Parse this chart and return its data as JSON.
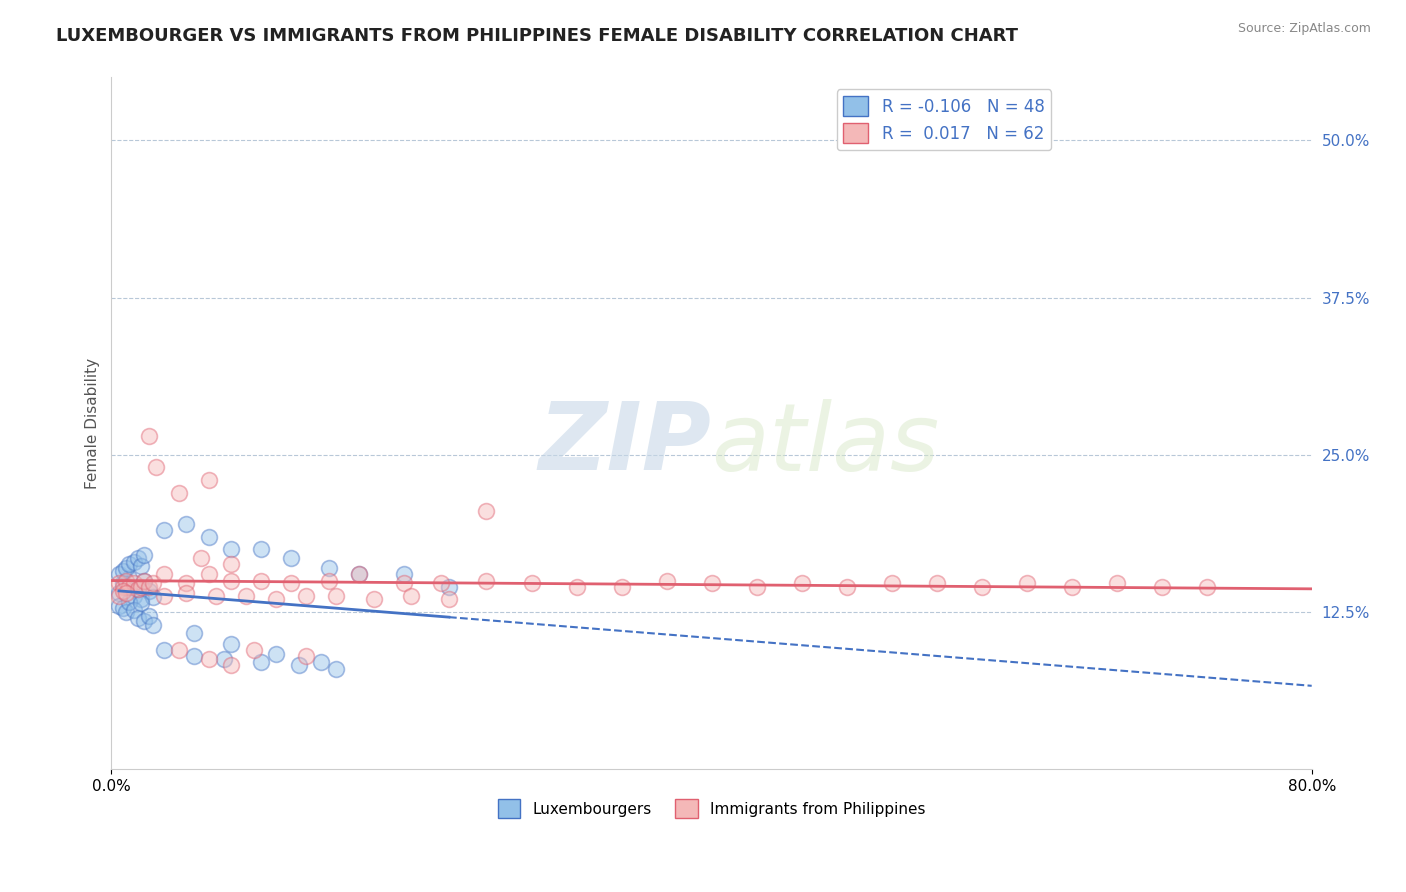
{
  "title": "LUXEMBOURGER VS IMMIGRANTS FROM PHILIPPINES FEMALE DISABILITY CORRELATION CHART",
  "source": "Source: ZipAtlas.com",
  "ylabel": "Female Disability",
  "xlim": [
    0.0,
    0.8
  ],
  "ylim": [
    0.0,
    0.55
  ],
  "yticks": [
    0.125,
    0.25,
    0.375,
    0.5
  ],
  "ytick_labels": [
    "12.5%",
    "25.0%",
    "37.5%",
    "50.0%"
  ],
  "xticks": [
    0.0,
    0.8
  ],
  "xtick_labels": [
    "0.0%",
    "80.0%"
  ],
  "legend_R1": "-0.106",
  "legend_N1": "48",
  "legend_R2": "0.017",
  "legend_N2": "62",
  "color_lux": "#92c0e8",
  "color_phi": "#f4b8b8",
  "line_color_lux": "#4472c4",
  "line_color_phi": "#e06070",
  "lux_x": [
    0.005,
    0.008,
    0.01,
    0.012,
    0.015,
    0.018,
    0.02,
    0.022,
    0.025,
    0.028,
    0.005,
    0.008,
    0.01,
    0.012,
    0.015,
    0.018,
    0.02,
    0.022,
    0.025,
    0.028,
    0.005,
    0.008,
    0.01,
    0.012,
    0.015,
    0.018,
    0.02,
    0.022,
    0.035,
    0.05,
    0.065,
    0.08,
    0.1,
    0.12,
    0.145,
    0.165,
    0.195,
    0.225,
    0.035,
    0.055,
    0.075,
    0.1,
    0.125,
    0.15,
    0.055,
    0.08,
    0.11,
    0.14
  ],
  "lux_y": [
    0.14,
    0.148,
    0.145,
    0.152,
    0.138,
    0.143,
    0.135,
    0.15,
    0.142,
    0.137,
    0.13,
    0.128,
    0.125,
    0.133,
    0.127,
    0.12,
    0.132,
    0.118,
    0.122,
    0.115,
    0.155,
    0.158,
    0.16,
    0.163,
    0.165,
    0.168,
    0.162,
    0.17,
    0.19,
    0.195,
    0.185,
    0.175,
    0.175,
    0.168,
    0.16,
    0.155,
    0.155,
    0.145,
    0.095,
    0.09,
    0.088,
    0.085,
    0.083,
    0.08,
    0.108,
    0.1,
    0.092,
    0.085
  ],
  "phi_x": [
    0.005,
    0.008,
    0.01,
    0.012,
    0.015,
    0.018,
    0.02,
    0.022,
    0.025,
    0.028,
    0.005,
    0.008,
    0.01,
    0.035,
    0.05,
    0.065,
    0.08,
    0.1,
    0.12,
    0.145,
    0.165,
    0.195,
    0.22,
    0.25,
    0.28,
    0.31,
    0.34,
    0.37,
    0.4,
    0.43,
    0.46,
    0.49,
    0.52,
    0.55,
    0.58,
    0.61,
    0.64,
    0.67,
    0.7,
    0.73,
    0.035,
    0.05,
    0.07,
    0.09,
    0.11,
    0.13,
    0.15,
    0.175,
    0.2,
    0.225,
    0.03,
    0.065,
    0.095,
    0.13,
    0.025,
    0.045,
    0.06,
    0.08,
    0.045,
    0.065,
    0.08,
    0.25
  ],
  "phi_y": [
    0.148,
    0.145,
    0.15,
    0.145,
    0.148,
    0.143,
    0.145,
    0.15,
    0.145,
    0.148,
    0.138,
    0.142,
    0.14,
    0.155,
    0.148,
    0.155,
    0.15,
    0.15,
    0.148,
    0.15,
    0.155,
    0.148,
    0.148,
    0.15,
    0.148,
    0.145,
    0.145,
    0.15,
    0.148,
    0.145,
    0.148,
    0.145,
    0.148,
    0.148,
    0.145,
    0.148,
    0.145,
    0.148,
    0.145,
    0.145,
    0.138,
    0.14,
    0.138,
    0.138,
    0.135,
    0.138,
    0.138,
    0.135,
    0.138,
    0.135,
    0.24,
    0.23,
    0.095,
    0.09,
    0.265,
    0.22,
    0.168,
    0.163,
    0.095,
    0.088,
    0.083,
    0.205
  ],
  "background_color": "#ffffff",
  "grid_color": "#b8c8d8",
  "title_fontsize": 13,
  "axis_label_fontsize": 11,
  "tick_fontsize": 11,
  "scatter_size": 130,
  "scatter_alpha": 0.45
}
